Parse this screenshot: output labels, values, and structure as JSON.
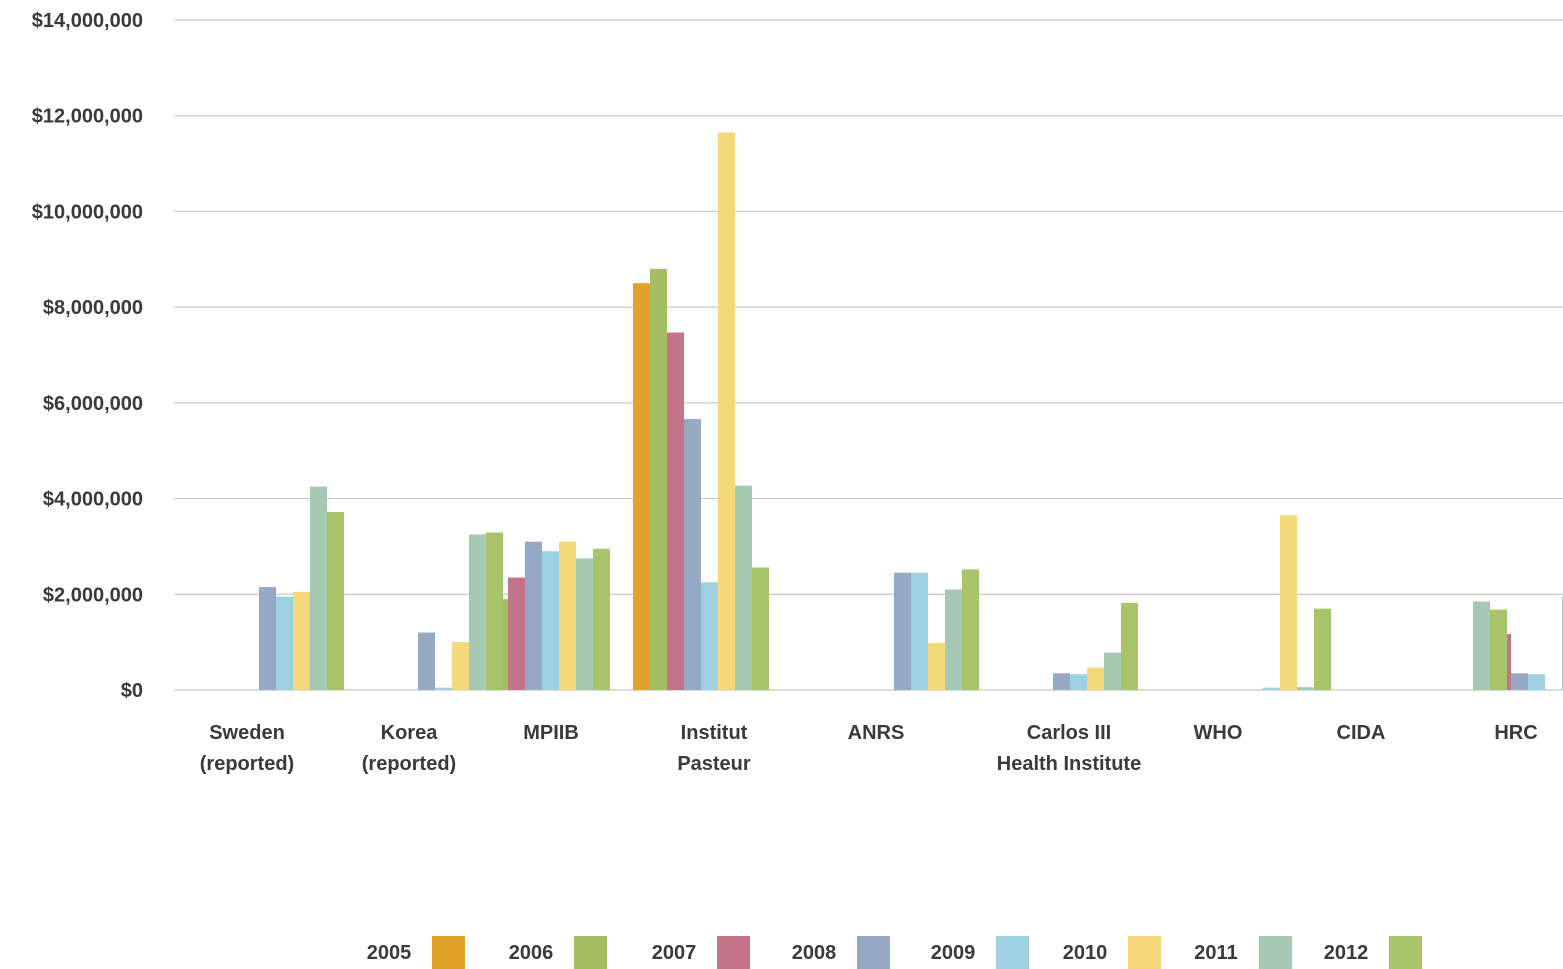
{
  "chart_data": {
    "type": "bar",
    "title": "",
    "xlabel": "",
    "ylabel": "",
    "ylim": [
      0,
      14000000
    ],
    "y_ticks": [
      {
        "value": 0,
        "label": "$0"
      },
      {
        "value": 2000000,
        "label": "$2,000,000"
      },
      {
        "value": 4000000,
        "label": "$4,000,000"
      },
      {
        "value": 6000000,
        "label": "$6,000,000"
      },
      {
        "value": 8000000,
        "label": "$8,000,000"
      },
      {
        "value": 10000000,
        "label": "$10,000,000"
      },
      {
        "value": 12000000,
        "label": "$12,000,000"
      },
      {
        "value": 14000000,
        "label": "$14,000,000"
      }
    ],
    "grid": true,
    "legend_position": "bottom",
    "categories": [
      {
        "lines": [
          "Sweden",
          "(reported)"
        ]
      },
      {
        "lines": [
          "Korea",
          "(reported)"
        ]
      },
      {
        "lines": [
          "MPIIB"
        ]
      },
      {
        "lines": [
          "Institut",
          "Pasteur"
        ]
      },
      {
        "lines": [
          "ANRS"
        ]
      },
      {
        "lines": [
          "Carlos III",
          "Health Institute"
        ]
      },
      {
        "lines": [
          "WHO"
        ]
      },
      {
        "lines": [
          "CIDA"
        ]
      },
      {
        "lines": [
          "HRC"
        ]
      }
    ],
    "series": [
      {
        "name": "2005",
        "color": "#E2A32B",
        "values": [
          null,
          null,
          2500000,
          8500000,
          null,
          null,
          null,
          null,
          null
        ]
      },
      {
        "name": "2006",
        "color": "#A3BF62",
        "values": [
          null,
          null,
          1900000,
          8800000,
          null,
          null,
          null,
          null,
          null
        ]
      },
      {
        "name": "2007",
        "color": "#C47488",
        "values": [
          null,
          null,
          2350000,
          7470000,
          null,
          null,
          null,
          null,
          1170000
        ]
      },
      {
        "name": "2008",
        "color": "#97A8C5",
        "values": [
          2150000,
          1200000,
          3100000,
          5660000,
          2450000,
          350000,
          null,
          null,
          350000
        ]
      },
      {
        "name": "2009",
        "color": "#9ED2E2",
        "values": [
          1950000,
          50000,
          2900000,
          2250000,
          2450000,
          330000,
          50000,
          null,
          330000
        ]
      },
      {
        "name": "2010",
        "color": "#F5D77C",
        "values": [
          2050000,
          1000000,
          3100000,
          11650000,
          980000,
          470000,
          3650000,
          null,
          null
        ]
      },
      {
        "name": "2011",
        "color": "#A5C9B2",
        "values": [
          4250000,
          3250000,
          2750000,
          4270000,
          2100000,
          780000,
          60000,
          1850000,
          1950000
        ]
      },
      {
        "name": "2012",
        "color": "#A8C46A",
        "values": [
          3720000,
          3290000,
          2950000,
          2560000,
          2520000,
          1820000,
          1700000,
          1680000,
          1680000
        ]
      }
    ]
  }
}
